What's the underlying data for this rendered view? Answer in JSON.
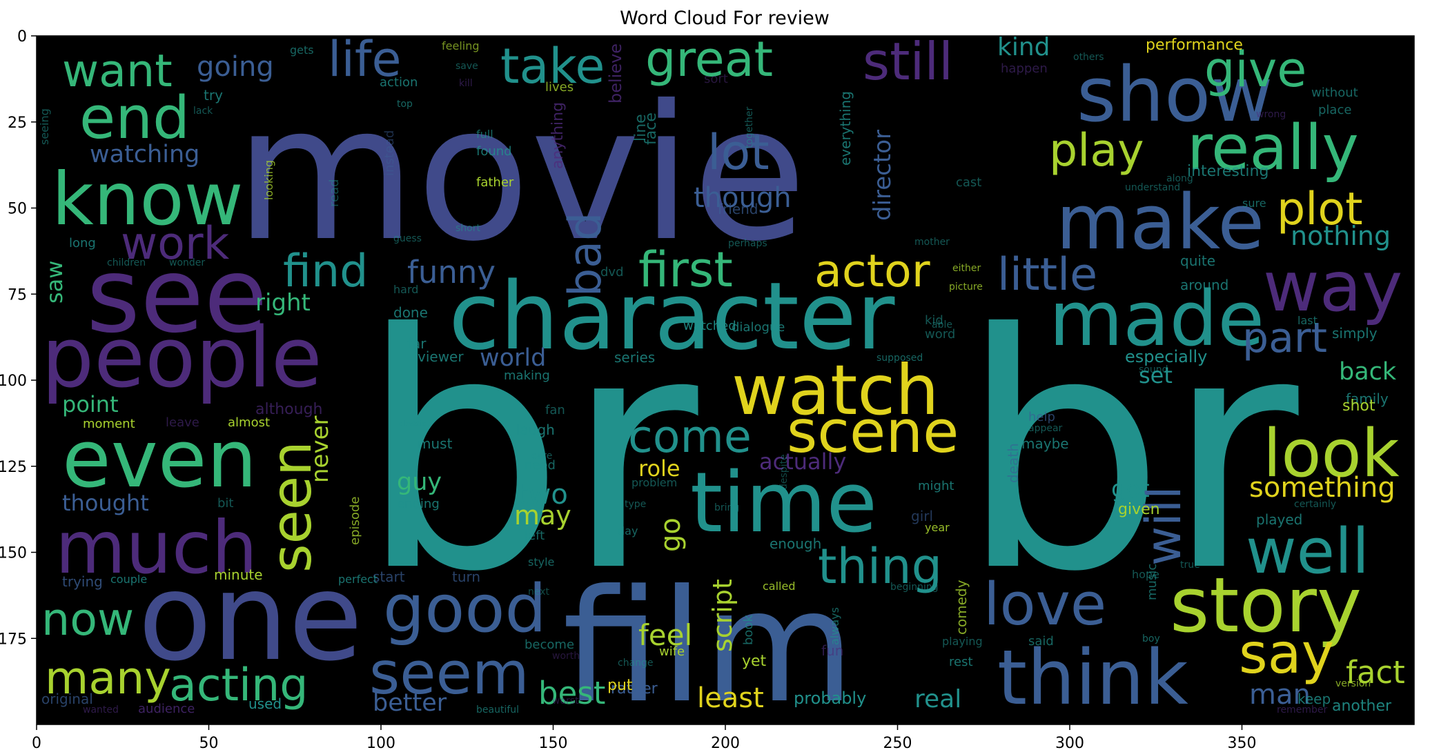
{
  "chart_data": {
    "type": "wordcloud",
    "title": "Word Cloud For review",
    "xlim": [
      0,
      400
    ],
    "ylim": [
      200,
      0
    ],
    "x_ticks": [
      0,
      50,
      100,
      150,
      200,
      250,
      300,
      350
    ],
    "y_ticks": [
      0,
      25,
      50,
      75,
      100,
      125,
      150,
      175
    ],
    "background": "#000000",
    "palette": {
      "indigo": "#404a8a",
      "purple": "#4d2b7a",
      "teal": "#21918c",
      "green": "#35b779",
      "lime": "#a8d22f",
      "yellow": "#e0d31d",
      "blue": "#3b5e94"
    },
    "words": [
      {
        "text": "br",
        "color": "teal"
      },
      {
        "text": "br",
        "color": "teal"
      },
      {
        "text": "movie",
        "color": "indigo"
      },
      {
        "text": "film",
        "color": "blue"
      },
      {
        "text": "one",
        "color": "indigo"
      },
      {
        "text": "character",
        "color": "teal"
      },
      {
        "text": "see",
        "color": "purple"
      },
      {
        "text": "people",
        "color": "purple"
      },
      {
        "text": "even",
        "color": "green"
      },
      {
        "text": "much",
        "color": "purple"
      },
      {
        "text": "know",
        "color": "green"
      },
      {
        "text": "show",
        "color": "blue"
      },
      {
        "text": "make",
        "color": "blue"
      },
      {
        "text": "made",
        "color": "teal"
      },
      {
        "text": "really",
        "color": "green"
      },
      {
        "text": "way",
        "color": "purple"
      },
      {
        "text": "story",
        "color": "lime"
      },
      {
        "text": "think",
        "color": "blue"
      },
      {
        "text": "time",
        "color": "teal"
      },
      {
        "text": "good",
        "color": "blue"
      },
      {
        "text": "watch",
        "color": "yellow"
      },
      {
        "text": "scene",
        "color": "yellow"
      },
      {
        "text": "seem",
        "color": "blue"
      },
      {
        "text": "look",
        "color": "lime"
      },
      {
        "text": "well",
        "color": "teal"
      },
      {
        "text": "love",
        "color": "blue"
      },
      {
        "text": "end",
        "color": "green"
      },
      {
        "text": "want",
        "color": "green"
      },
      {
        "text": "life",
        "color": "blue"
      },
      {
        "text": "take",
        "color": "teal"
      },
      {
        "text": "great",
        "color": "green"
      },
      {
        "text": "still",
        "color": "purple"
      },
      {
        "text": "give",
        "color": "green"
      },
      {
        "text": "play",
        "color": "lime"
      },
      {
        "text": "plot",
        "color": "yellow"
      },
      {
        "text": "lot",
        "color": "blue"
      },
      {
        "text": "first",
        "color": "green"
      },
      {
        "text": "actor",
        "color": "yellow"
      },
      {
        "text": "little",
        "color": "blue"
      },
      {
        "text": "part",
        "color": "blue"
      },
      {
        "text": "come",
        "color": "teal"
      },
      {
        "text": "thing",
        "color": "teal"
      },
      {
        "text": "seen",
        "color": "lime"
      },
      {
        "text": "now",
        "color": "green"
      },
      {
        "text": "many",
        "color": "lime"
      },
      {
        "text": "acting",
        "color": "green"
      },
      {
        "text": "say",
        "color": "yellow"
      },
      {
        "text": "fact",
        "color": "lime"
      },
      {
        "text": "work",
        "color": "purple"
      },
      {
        "text": "find",
        "color": "teal"
      },
      {
        "text": "funny",
        "color": "blue"
      },
      {
        "text": "bad",
        "color": "blue"
      },
      {
        "text": "will",
        "color": "blue"
      },
      {
        "text": "something",
        "color": "yellow"
      },
      {
        "text": "feel",
        "color": "lime"
      },
      {
        "text": "best",
        "color": "green"
      },
      {
        "text": "least",
        "color": "yellow"
      },
      {
        "text": "man",
        "color": "blue"
      },
      {
        "text": "script",
        "color": "lime"
      },
      {
        "text": "two",
        "color": "teal"
      },
      {
        "text": "may",
        "color": "lime"
      },
      {
        "text": "go",
        "color": "lime"
      },
      {
        "text": "guy",
        "color": "green"
      },
      {
        "text": "role",
        "color": "yellow"
      },
      {
        "text": "never",
        "color": "lime"
      },
      {
        "text": "going",
        "color": "blue"
      },
      {
        "text": "watching",
        "color": "blue"
      },
      {
        "text": "though",
        "color": "blue"
      },
      {
        "text": "director",
        "color": "blue"
      },
      {
        "text": "nothing",
        "color": "teal"
      },
      {
        "text": "kind",
        "color": "teal"
      },
      {
        "text": "back",
        "color": "green"
      },
      {
        "text": "set",
        "color": "teal"
      },
      {
        "text": "got",
        "color": "teal"
      },
      {
        "text": "real",
        "color": "teal"
      },
      {
        "text": "better",
        "color": "blue"
      },
      {
        "text": "world",
        "color": "blue"
      },
      {
        "text": "point",
        "color": "green"
      },
      {
        "text": "thought",
        "color": "blue"
      },
      {
        "text": "actually",
        "color": "purple"
      },
      {
        "text": "right",
        "color": "green"
      },
      {
        "text": "saw",
        "color": "green"
      },
      {
        "text": "performance",
        "color": "yellow"
      },
      {
        "text": "interesting",
        "color": "teal"
      },
      {
        "text": "especially",
        "color": "teal"
      },
      {
        "text": "probably",
        "color": "teal"
      },
      {
        "text": "around",
        "color": "teal"
      },
      {
        "text": "quite",
        "color": "teal"
      },
      {
        "text": "family",
        "color": "teal"
      },
      {
        "text": "shot",
        "color": "lime"
      },
      {
        "text": "given",
        "color": "lime"
      },
      {
        "text": "played",
        "color": "teal"
      },
      {
        "text": "another",
        "color": "teal"
      },
      {
        "text": "rather",
        "color": "blue"
      },
      {
        "text": "put",
        "color": "yellow"
      },
      {
        "text": "yet",
        "color": "lime"
      },
      {
        "text": "enough",
        "color": "teal"
      },
      {
        "text": "minute",
        "color": "lime"
      },
      {
        "text": "moment",
        "color": "lime"
      },
      {
        "text": "almost",
        "color": "lime"
      },
      {
        "text": "although",
        "color": "purple"
      },
      {
        "text": "trying",
        "color": "blue"
      },
      {
        "text": "original",
        "color": "blue"
      },
      {
        "text": "audience",
        "color": "purple"
      },
      {
        "text": "episode",
        "color": "lime"
      },
      {
        "text": "believe",
        "color": "purple"
      },
      {
        "text": "anything",
        "color": "purple"
      },
      {
        "text": "everything",
        "color": "teal"
      },
      {
        "text": "friend",
        "color": "blue"
      },
      {
        "text": "done",
        "color": "teal"
      },
      {
        "text": "last",
        "color": "teal"
      },
      {
        "text": "sure",
        "color": "teal"
      },
      {
        "text": "simply",
        "color": "teal"
      },
      {
        "text": "music",
        "color": "teal"
      },
      {
        "text": "comedy",
        "color": "lime"
      },
      {
        "text": "dialogue",
        "color": "teal"
      },
      {
        "text": "maybe",
        "color": "teal"
      },
      {
        "text": "death",
        "color": "blue"
      },
      {
        "text": "girl",
        "color": "blue"
      },
      {
        "text": "far",
        "color": "teal"
      },
      {
        "text": "viewer",
        "color": "teal"
      },
      {
        "text": "laugh",
        "color": "teal"
      },
      {
        "text": "must",
        "color": "teal"
      },
      {
        "text": "ending",
        "color": "teal"
      },
      {
        "text": "need",
        "color": "teal"
      },
      {
        "text": "help",
        "color": "blue"
      },
      {
        "text": "might",
        "color": "teal"
      },
      {
        "text": "fun",
        "color": "purple"
      },
      {
        "text": "said",
        "color": "teal"
      },
      {
        "text": "rest",
        "color": "teal"
      },
      {
        "text": "keep",
        "color": "teal"
      },
      {
        "text": "used",
        "color": "teal"
      },
      {
        "text": "start",
        "color": "blue"
      },
      {
        "text": "turn",
        "color": "blue"
      },
      {
        "text": "leave",
        "color": "purple"
      },
      {
        "text": "making",
        "color": "teal"
      },
      {
        "text": "long",
        "color": "teal"
      },
      {
        "text": "try",
        "color": "teal"
      },
      {
        "text": "action",
        "color": "teal"
      },
      {
        "text": "happen",
        "color": "purple"
      },
      {
        "text": "without",
        "color": "teal"
      },
      {
        "text": "place",
        "color": "teal"
      },
      {
        "text": "found",
        "color": "teal"
      },
      {
        "text": "father",
        "color": "lime"
      },
      {
        "text": "wife",
        "color": "lime"
      },
      {
        "text": "book",
        "color": "teal"
      },
      {
        "text": "perfect",
        "color": "teal"
      },
      {
        "text": "couple",
        "color": "teal"
      },
      {
        "text": "series",
        "color": "teal"
      },
      {
        "text": "watched",
        "color": "teal"
      },
      {
        "text": "left",
        "color": "teal"
      },
      {
        "text": "day",
        "color": "teal"
      },
      {
        "text": "style",
        "color": "teal"
      },
      {
        "text": "called",
        "color": "lime"
      },
      {
        "text": "become",
        "color": "teal"
      },
      {
        "text": "lives",
        "color": "lime"
      },
      {
        "text": "children",
        "color": "teal"
      },
      {
        "text": "wonder",
        "color": "teal"
      },
      {
        "text": "boy",
        "color": "teal"
      },
      {
        "text": "guess",
        "color": "teal"
      },
      {
        "text": "cast",
        "color": "teal"
      },
      {
        "text": "read",
        "color": "teal"
      },
      {
        "text": "hard",
        "color": "teal"
      },
      {
        "text": "kid",
        "color": "teal"
      },
      {
        "text": "either",
        "color": "lime"
      },
      {
        "text": "picture",
        "color": "lime"
      },
      {
        "text": "supposed",
        "color": "teal"
      },
      {
        "text": "able",
        "color": "teal"
      },
      {
        "text": "word",
        "color": "teal"
      },
      {
        "text": "sound",
        "color": "teal"
      },
      {
        "text": "wrong",
        "color": "purple"
      },
      {
        "text": "year",
        "color": "lime"
      },
      {
        "text": "face",
        "color": "teal"
      },
      {
        "text": "line",
        "color": "teal"
      },
      {
        "text": "feeling",
        "color": "lime"
      },
      {
        "text": "gets",
        "color": "teal"
      },
      {
        "text": "full",
        "color": "teal"
      },
      {
        "text": "top",
        "color": "teal"
      },
      {
        "text": "instead",
        "color": "blue"
      },
      {
        "text": "looking",
        "color": "lime"
      },
      {
        "text": "classic",
        "color": "teal"
      },
      {
        "text": "fan",
        "color": "teal"
      },
      {
        "text": "problem",
        "color": "teal"
      },
      {
        "text": "care",
        "color": "teal"
      },
      {
        "text": "type",
        "color": "teal"
      },
      {
        "text": "bring",
        "color": "teal"
      },
      {
        "text": "despite",
        "color": "teal"
      },
      {
        "text": "version",
        "color": "lime"
      },
      {
        "text": "bit",
        "color": "teal"
      },
      {
        "text": "beautiful",
        "color": "teal"
      },
      {
        "text": "always",
        "color": "teal"
      },
      {
        "text": "playing",
        "color": "teal"
      },
      {
        "text": "short",
        "color": "teal"
      },
      {
        "text": "beginning",
        "color": "teal"
      },
      {
        "text": "change",
        "color": "teal"
      },
      {
        "text": "worst",
        "color": "purple"
      },
      {
        "text": "worth",
        "color": "purple"
      },
      {
        "text": "wanted",
        "color": "purple"
      },
      {
        "text": "next",
        "color": "teal"
      },
      {
        "text": "sort",
        "color": "purple"
      },
      {
        "text": "remember",
        "color": "purple"
      },
      {
        "text": "certainly",
        "color": "teal"
      },
      {
        "text": "true",
        "color": "teal"
      },
      {
        "text": "hope",
        "color": "teal"
      },
      {
        "text": "appear",
        "color": "teal"
      },
      {
        "text": "lack",
        "color": "teal"
      },
      {
        "text": "save",
        "color": "teal"
      },
      {
        "text": "kill",
        "color": "purple"
      },
      {
        "text": "perhaps",
        "color": "teal"
      },
      {
        "text": "mother",
        "color": "teal"
      },
      {
        "text": "others",
        "color": "teal"
      },
      {
        "text": "along",
        "color": "teal"
      },
      {
        "text": "seeing",
        "color": "teal"
      },
      {
        "text": "understand",
        "color": "teal"
      },
      {
        "text": "dvd",
        "color": "teal"
      },
      {
        "text": "together",
        "color": "teal"
      }
    ]
  }
}
